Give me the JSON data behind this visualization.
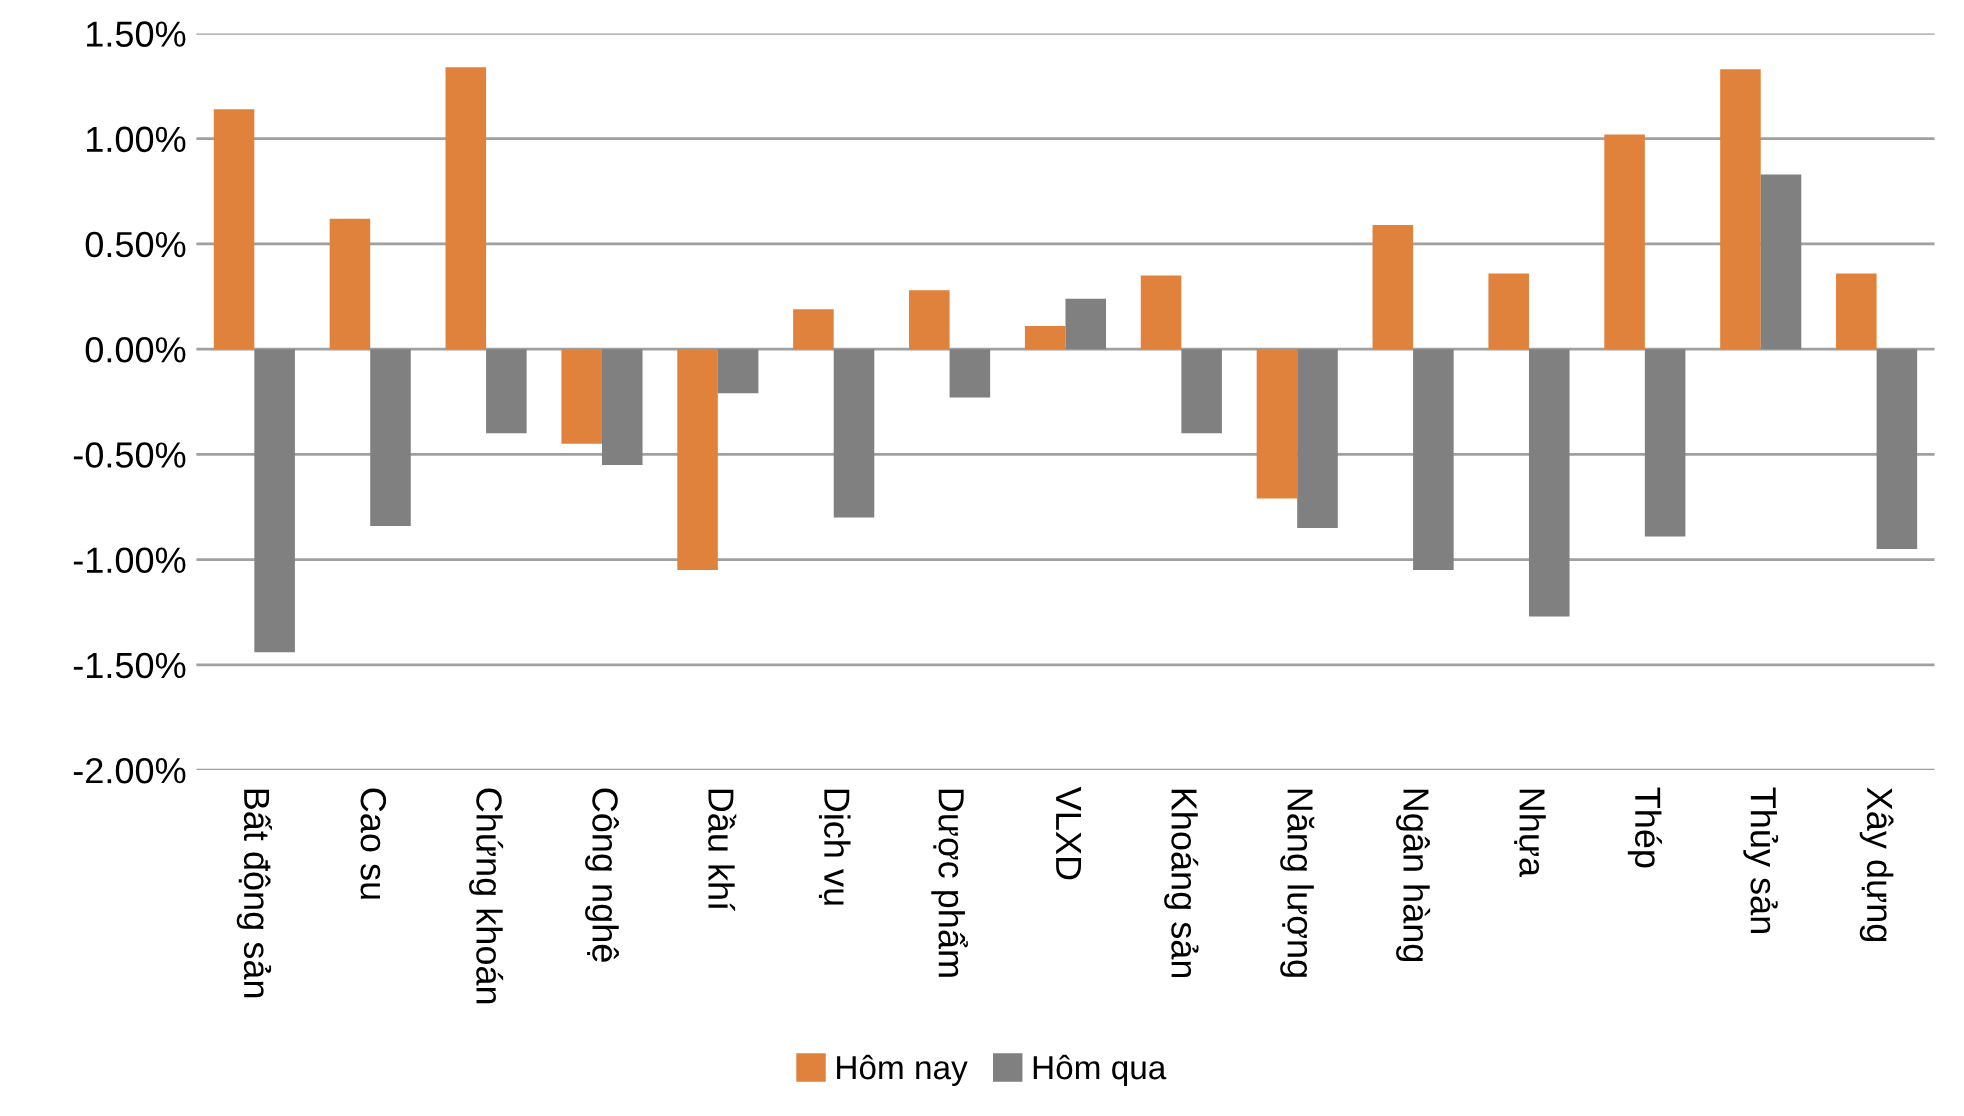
{
  "chart_data": {
    "type": "bar",
    "categories": [
      "Bất động sản",
      "Cao su",
      "Chứng khoán",
      "Công nghệ",
      "Dầu khí",
      "Dịch vụ",
      "Dược phẩm",
      "VLXD",
      "Khoáng sản",
      "Năng lượng",
      "Ngân hàng",
      "Nhựa",
      "Thép",
      "Thủy sản",
      "Xây dựng"
    ],
    "series": [
      {
        "name": "Hôm nay",
        "color": "#e0823c",
        "values": [
          1.14,
          0.62,
          1.34,
          -0.45,
          -1.05,
          0.19,
          0.28,
          0.11,
          0.35,
          -0.71,
          0.59,
          0.36,
          1.02,
          1.33,
          0.36
        ]
      },
      {
        "name": "Hôm qua",
        "color": "#808080",
        "values": [
          -1.44,
          -0.84,
          -0.4,
          -0.55,
          -0.21,
          -0.8,
          -0.23,
          0.24,
          -0.4,
          -0.85,
          -1.05,
          -1.27,
          -0.89,
          0.83,
          -0.95
        ]
      }
    ],
    "ylim": [
      -2.0,
      1.5
    ],
    "yticks": [
      {
        "value": -2.0,
        "label": "-2.00%"
      },
      {
        "value": -1.5,
        "label": "-1.50%"
      },
      {
        "value": -1.0,
        "label": "-1.00%"
      },
      {
        "value": -0.5,
        "label": "-0.50%"
      },
      {
        "value": 0,
        "label": "0.00%"
      },
      {
        "value": 0.5,
        "label": "0.50%"
      },
      {
        "value": 1.0,
        "label": "1.00%"
      },
      {
        "value": 1.5,
        "label": "1.50%"
      }
    ],
    "grid": "y",
    "legend": "bottom"
  }
}
